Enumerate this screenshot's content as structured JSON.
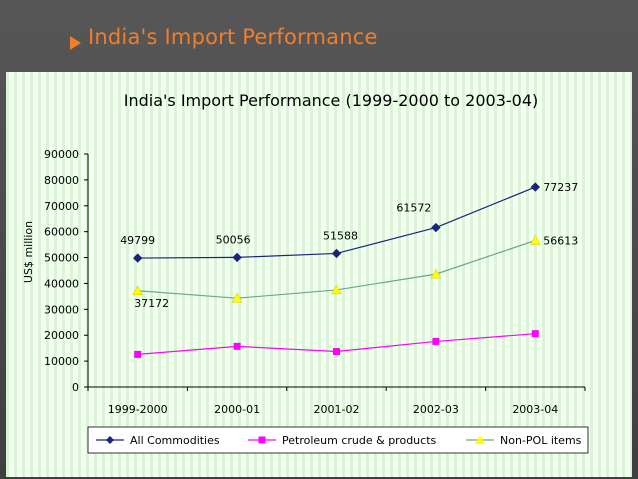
{
  "slide": {
    "title": "India's Import Performance"
  },
  "chart_data": {
    "type": "line",
    "title": "India's Import Performance (1999-2000 to 2003-04)",
    "xlabel": "",
    "ylabel": "US$ million",
    "ylim": [
      0,
      90000
    ],
    "ytick_step": 10000,
    "yticks": [
      "0",
      "10000",
      "20000",
      "30000",
      "40000",
      "50000",
      "60000",
      "70000",
      "80000",
      "90000"
    ],
    "categories": [
      "1999-2000",
      "2000-01",
      "2001-02",
      "2002-03",
      "2003-04"
    ],
    "legend_position": "bottom",
    "series": [
      {
        "name": "All Commodities",
        "values": [
          49799,
          50056,
          51588,
          61572,
          77237
        ],
        "color": "#1a237e",
        "marker": "diamond",
        "labels": [
          "49799",
          "50056",
          "51588",
          "61572",
          "77237"
        ]
      },
      {
        "name": "Petroleum crude & products",
        "values": [
          12600,
          15700,
          13700,
          17600,
          20600
        ],
        "color": "#ff00ff",
        "marker": "square",
        "labels": []
      },
      {
        "name": "Non-POL items",
        "values": [
          37172,
          34300,
          37500,
          43600,
          56613
        ],
        "color": "#ffff00",
        "line_color": "#66aa88",
        "marker": "triangle",
        "labels": [
          "37172",
          "",
          "",
          "",
          "56613"
        ]
      }
    ]
  }
}
